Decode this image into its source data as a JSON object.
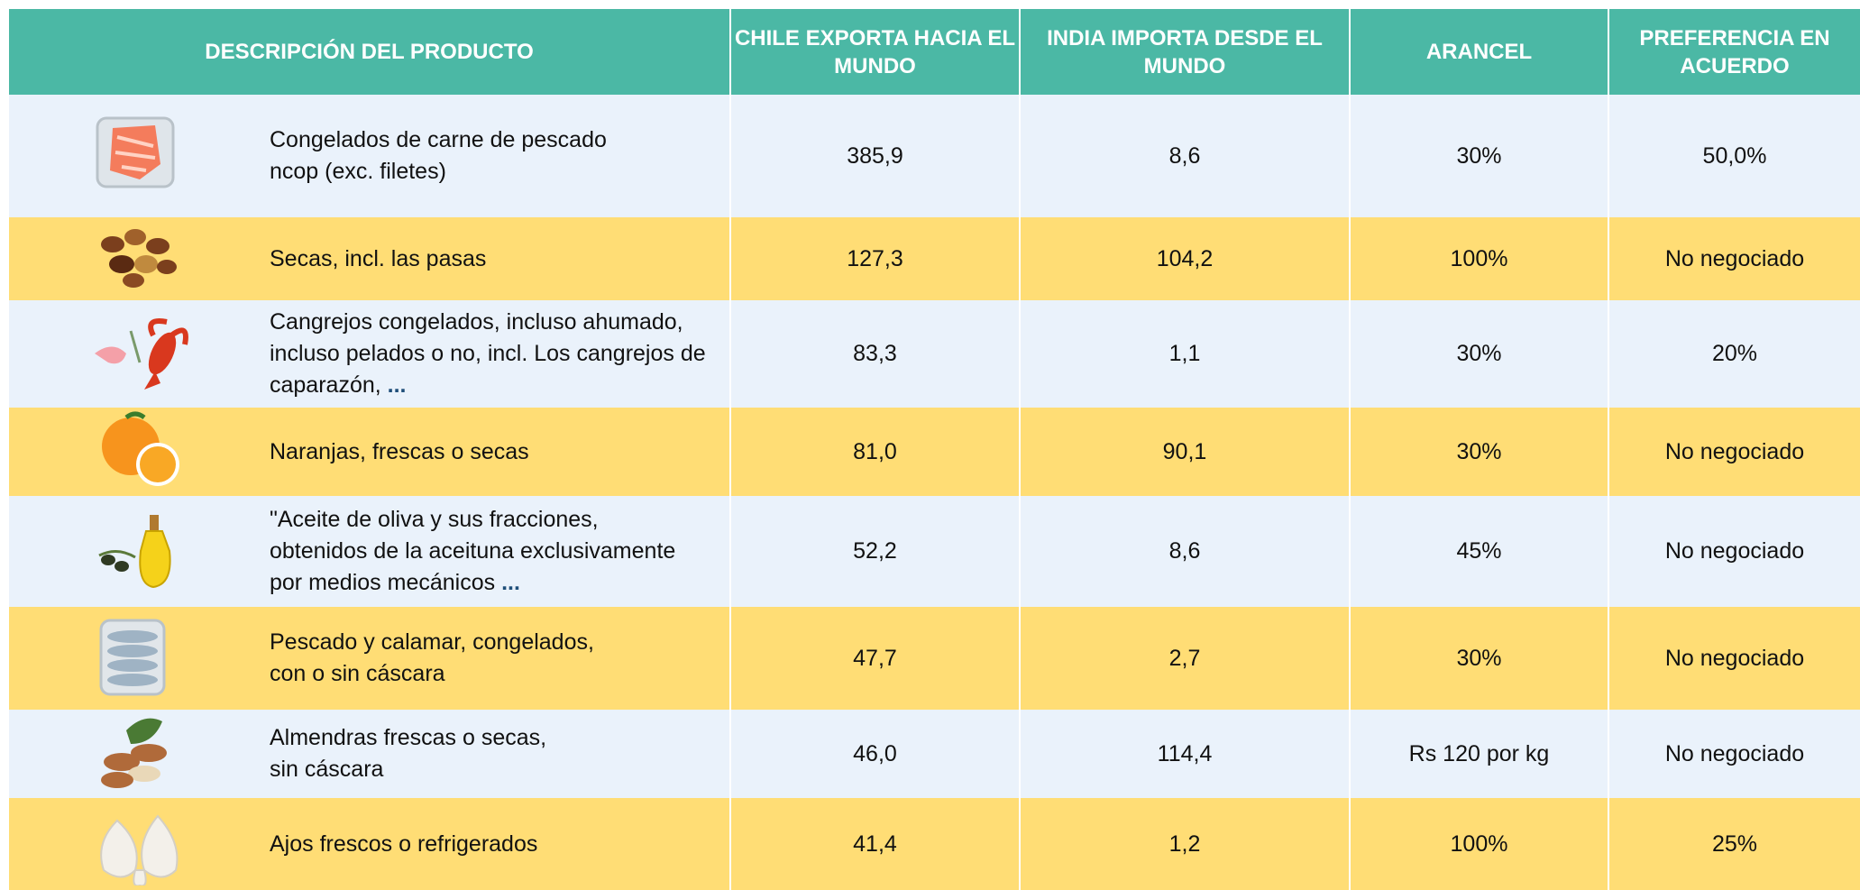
{
  "table": {
    "header": [
      "DESCRIPCIÓN DEL PRODUCTO",
      "CHILE EXPORTA HACIA EL MUNDO",
      "INDIA IMPORTA DESDE EL MUNDO",
      "ARANCEL",
      "PREFERENCIA EN ACUERDO"
    ],
    "rows": [
      {
        "description": [
          "Congelados de carne de pescado",
          "ncop (exc. filetes)"
        ],
        "chile": "385,9",
        "india": "8,6",
        "arancel": "30%",
        "preferencia": "50,0%"
      },
      {
        "description": [
          "Secas, incl. las pasas"
        ],
        "chile": "127,3",
        "india": "104,2",
        "arancel": "100%",
        "preferencia": "No negociado"
      },
      {
        "description": [
          "Cangrejos congelados, incluso ahumado,",
          "incluso pelados o no, incl. Los cangrejos de",
          "caparazón,"
        ],
        "more": "...",
        "chile": "83,3",
        "india": "1,1",
        "arancel": "30%",
        "preferencia": "20%"
      },
      {
        "description": [
          "Naranjas, frescas o secas"
        ],
        "chile": "81,0",
        "india": "90,1",
        "arancel": "30%",
        "preferencia": "No negociado"
      },
      {
        "description": [
          "\"Aceite de oliva y sus fracciones,",
          "obtenidos de la aceituna exclusivamente",
          "por medios mecánicos"
        ],
        "more": "...",
        "chile": "52,2",
        "india": "8,6",
        "arancel": "45%",
        "preferencia": "No negociado"
      },
      {
        "description": [
          "Pescado y calamar, congelados,",
          "con o sin cáscara"
        ],
        "chile": "47,7",
        "india": "2,7",
        "arancel": "30%",
        "preferencia": "No negociado"
      },
      {
        "description": [
          "Almendras frescas o secas,",
          "sin cáscara"
        ],
        "chile": "46,0",
        "india": "114,4",
        "arancel": "Rs 120 por  kg",
        "preferencia": "No negociado"
      },
      {
        "description": [
          "Ajos frescos o refrigerados"
        ],
        "chile": "41,4",
        "india": "1,2",
        "arancel": "100%",
        "preferencia": "25%"
      }
    ]
  }
}
